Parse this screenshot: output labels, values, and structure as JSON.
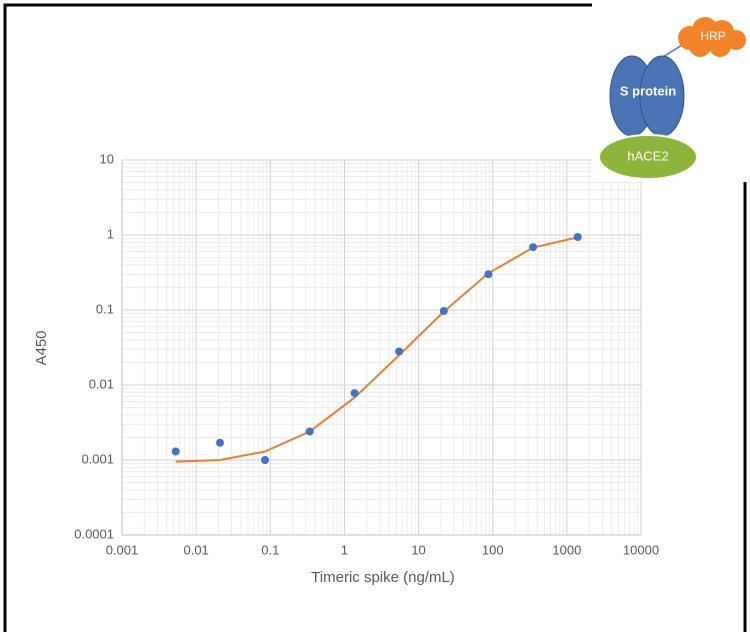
{
  "chart_data": {
    "type": "scatter",
    "x_label": "Timeric spike (ng/mL)",
    "y_label": "A450",
    "x": [
      0.0053,
      0.021,
      0.085,
      0.34,
      1.37,
      5.47,
      21.9,
      87.5,
      350,
      1400
    ],
    "series": [
      {
        "style": "markers",
        "color": "#4472c4",
        "values": [
          0.0013,
          0.0017,
          0.001,
          0.0024,
          0.0078,
          0.028,
          0.097,
          0.3,
          0.69,
          0.94
        ]
      },
      {
        "style": "line",
        "color": "#ed7d31",
        "values": [
          0.00095,
          0.001,
          0.0013,
          0.0024,
          0.0068,
          0.025,
          0.095,
          0.31,
          0.68,
          0.93
        ]
      }
    ],
    "log_x": true,
    "log_y": true,
    "xlim": [
      0.001,
      10000
    ],
    "ylim": [
      0.0001,
      10
    ],
    "xticks": [
      0.001,
      0.01,
      0.1,
      1,
      10,
      100,
      1000,
      10000
    ],
    "yticks": [
      0.0001,
      0.001,
      0.01,
      0.1,
      1,
      10
    ],
    "grid": true,
    "minor_grid": true,
    "annotations": [
      "HRP",
      "S protein",
      "hACE2"
    ]
  }
}
